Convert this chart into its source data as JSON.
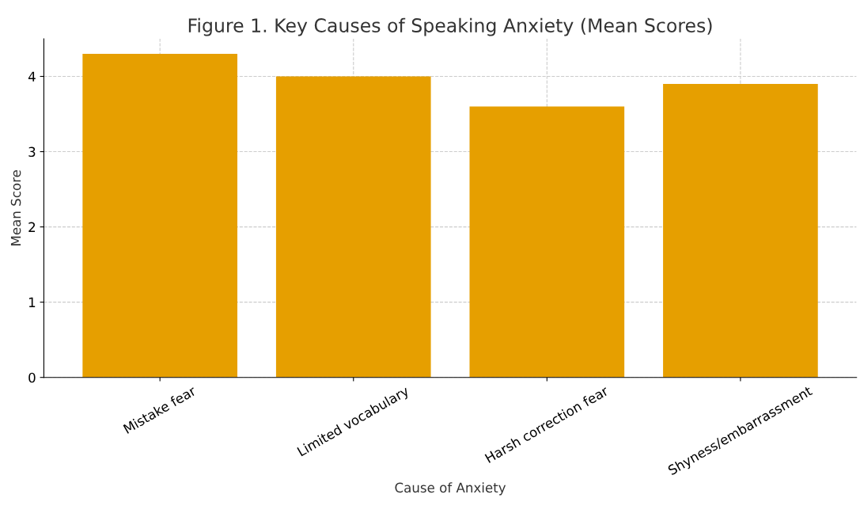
{
  "chart_data": {
    "type": "bar",
    "title": "Figure 1. Key Causes of Speaking Anxiety (Mean Scores)",
    "xlabel": "Cause of Anxiety",
    "ylabel": "Mean Score",
    "categories": [
      "Mistake fear",
      "Limited vocabulary",
      "Harsh correction fear",
      "Shyness/embarrassment"
    ],
    "values": [
      4.3,
      4.0,
      3.6,
      3.9
    ],
    "color": "#e69f00",
    "ylim": [
      0,
      4.5
    ],
    "yticks": [
      0,
      1,
      2,
      3,
      4
    ],
    "grid": true
  }
}
